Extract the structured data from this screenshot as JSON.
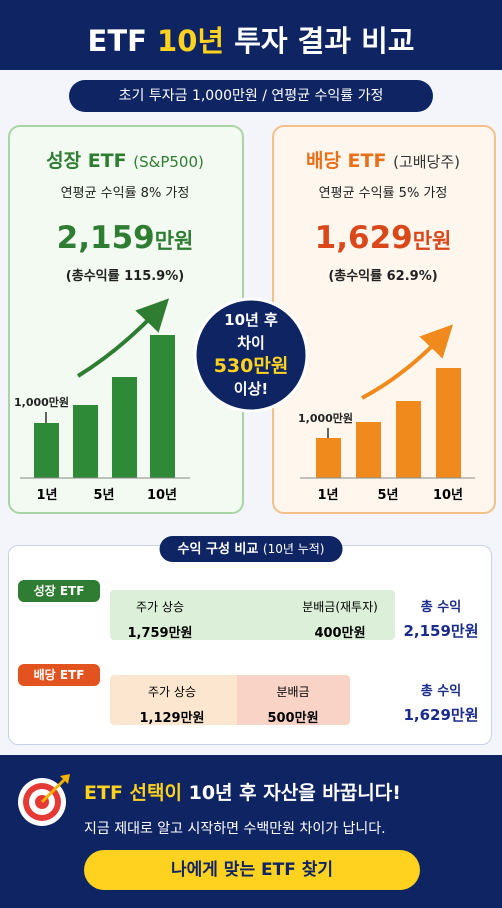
{
  "header": {
    "title_prefix": "ETF",
    "title_highlight": "10년",
    "title_suffix": "투자 결과 비교",
    "subtitle": "초기 투자금 1,000만원 / 연평균 수익률 가정"
  },
  "cards": [
    {
      "name": "성장 ETF",
      "ticker": "(S&P500)",
      "assumption": "연평균 수익률 8% 가정",
      "amount": "2,159",
      "unit": "만원",
      "total_return": "(총수익률 115.9%)",
      "start_label": "1,000만원",
      "x_labels": [
        "1년",
        "5년",
        "10년"
      ]
    },
    {
      "name": "배당 ETF",
      "ticker": "(고배당주)",
      "assumption": "연평균 수익률 5% 가정",
      "amount": "1,629",
      "unit": "만원",
      "total_return": "(총수익률 62.9%)",
      "start_label": "1,000만원",
      "x_labels": [
        "1년",
        "5년",
        "10년"
      ]
    }
  ],
  "badge": {
    "lines": [
      "10년 후",
      "차이",
      "530만원",
      "이상!"
    ]
  },
  "composition": {
    "title": "수익 구성 비교",
    "title_note": "(10년 누적)",
    "rows": [
      {
        "label": "성장 ETF",
        "segments": [
          {
            "label": "주가 상승",
            "value": "1,759만원"
          },
          {
            "label": "분배금(재투자)",
            "value": "400만원"
          }
        ],
        "total_label": "총 수익",
        "total": "2,159만원"
      },
      {
        "label": "배당 ETF",
        "segments": [
          {
            "label": "주가 상승",
            "value": "1,129만원"
          },
          {
            "label": "분배금",
            "value": "500만원"
          }
        ],
        "total_label": "총 수익",
        "total": "1,629만원"
      }
    ]
  },
  "footer": {
    "headline_highlight": "ETF 선택이",
    "headline_rest": "10년 후 자산을 바꿉니다!",
    "subtext": "지금 제대로 알고 시작하면 수백만원 차이가 납니다.",
    "button": "나에게 맞는 ETF 찾기"
  }
}
